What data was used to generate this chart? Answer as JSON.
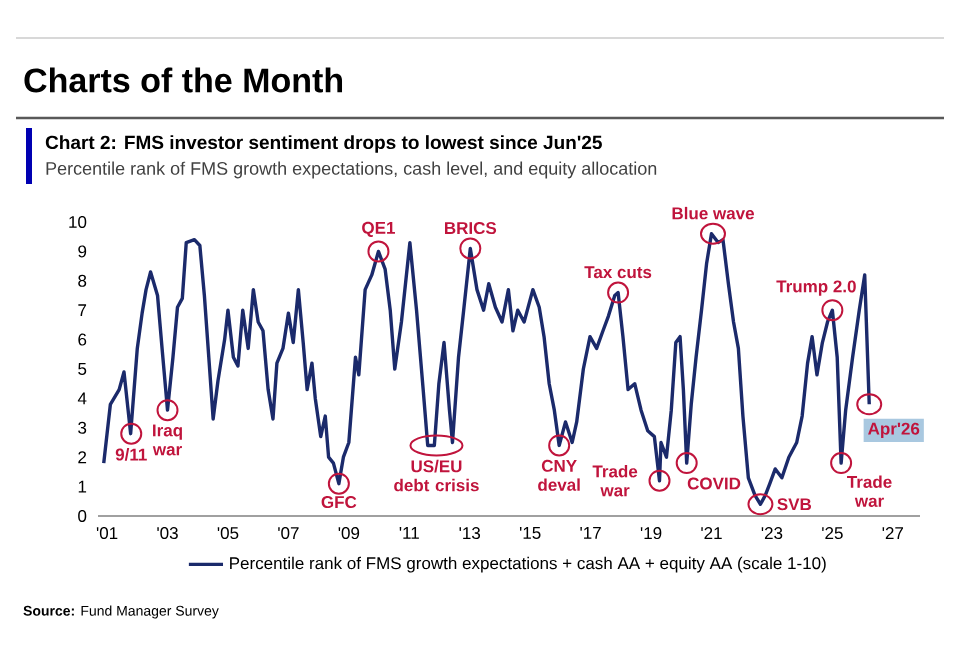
{
  "chart_data": {
    "type": "line",
    "title": "Chart 2: FMS investor sentiment drops to lowest since Jun'25",
    "subtitle": "Percentile rank of FMS growth expectations, cash level, and equity allocation",
    "annotations": [
      "Charts of the Month",
      "**Source:** Fund Manager Survey",
      {
        "text": "9/11",
        "x": 2001.8,
        "y": 2.8
      },
      {
        "text": "Iraq war",
        "x": 2003.0,
        "y": 3.6
      },
      {
        "text": "GFC",
        "x": 2008.67,
        "y": 1.1
      },
      {
        "text": "QE1",
        "x": 2009.98,
        "y": 9.0
      },
      {
        "text": "US/EU debt crisis",
        "x": 2011.9,
        "y": 2.4
      },
      {
        "text": "BRICS",
        "x": 2013.02,
        "y": 9.1
      },
      {
        "text": "CNY deval",
        "x": 2015.96,
        "y": 2.4
      },
      {
        "text": "Tax cuts",
        "x": 2017.91,
        "y": 7.6
      },
      {
        "text": "Trade war",
        "x": 2019.28,
        "y": 1.2
      },
      {
        "text": "COVID",
        "x": 2020.18,
        "y": 1.8
      },
      {
        "text": "Blue wave",
        "x": 2021.05,
        "y": 9.6
      },
      {
        "text": "SVB",
        "x": 2022.62,
        "y": 0.4
      },
      {
        "text": "Trump 2.0",
        "x": 2025.0,
        "y": 7.0
      },
      {
        "text": "Trade war",
        "x": 2025.29,
        "y": 1.8
      },
      {
        "text": "Apr'26",
        "x": 2026.22,
        "y": 3.8
      }
    ],
    "series": [
      {
        "name": "Percentile rank of FMS growth expectations + cash AA + equity AA (scale 1-10)",
        "color": "#1b2a6b",
        "x": [
          2000.89,
          2001.11,
          2001.4,
          2001.56,
          2001.78,
          2002.0,
          2002.16,
          2002.29,
          2002.44,
          2002.67,
          2002.82,
          2003.0,
          2003.18,
          2003.33,
          2003.49,
          2003.62,
          2003.89,
          2004.07,
          2004.22,
          2004.38,
          2004.51,
          2004.67,
          2004.89,
          2005.0,
          2005.18,
          2005.33,
          2005.49,
          2005.67,
          2005.84,
          2006.0,
          2006.16,
          2006.33,
          2006.49,
          2006.62,
          2006.82,
          2007.0,
          2007.16,
          2007.33,
          2007.49,
          2007.62,
          2007.78,
          2007.89,
          2008.07,
          2008.22,
          2008.33,
          2008.49,
          2008.67,
          2008.82,
          2009.0,
          2009.22,
          2009.33,
          2009.54,
          2009.76,
          2009.98,
          2010.2,
          2010.37,
          2010.52,
          2010.74,
          2011.02,
          2011.24,
          2011.46,
          2011.61,
          2011.83,
          2011.98,
          2012.15,
          2012.33,
          2012.43,
          2012.63,
          2012.8,
          2013.02,
          2013.24,
          2013.46,
          2013.63,
          2013.85,
          2014.07,
          2014.28,
          2014.43,
          2014.59,
          2014.8,
          2015.09,
          2015.3,
          2015.46,
          2015.63,
          2015.8,
          2015.96,
          2016.17,
          2016.39,
          2016.54,
          2016.76,
          2016.98,
          2017.2,
          2017.41,
          2017.59,
          2017.8,
          2017.91,
          2018.07,
          2018.24,
          2018.46,
          2018.67,
          2018.89,
          2019.11,
          2019.28,
          2019.33,
          2019.51,
          2019.67,
          2019.82,
          2019.96,
          2020.07,
          2020.18,
          2020.33,
          2020.49,
          2020.67,
          2020.84,
          2021.0,
          2021.22,
          2021.38,
          2021.56,
          2021.73,
          2021.89,
          2022.04,
          2022.22,
          2022.44,
          2022.62,
          2022.78,
          2022.93,
          2023.11,
          2023.33,
          2023.56,
          2023.82,
          2024.0,
          2024.18,
          2024.33,
          2024.49,
          2024.67,
          2024.84,
          2025.0,
          2025.16,
          2025.29,
          2025.44,
          2025.67,
          2025.89,
          2026.07,
          2026.22
        ],
        "values": [
          1.8,
          3.8,
          4.3,
          4.9,
          2.8,
          5.7,
          6.9,
          7.7,
          8.3,
          7.5,
          5.7,
          3.6,
          5.4,
          7.1,
          7.4,
          9.3,
          9.4,
          9.2,
          7.5,
          5.2,
          3.3,
          4.6,
          6.0,
          7.0,
          5.4,
          5.1,
          7.0,
          5.7,
          7.7,
          6.6,
          6.3,
          4.3,
          3.3,
          5.2,
          5.7,
          6.9,
          5.9,
          7.7,
          5.9,
          4.3,
          5.2,
          4.0,
          2.7,
          3.4,
          2.0,
          1.8,
          1.1,
          2.0,
          2.5,
          5.4,
          4.8,
          7.7,
          8.2,
          9.0,
          8.4,
          7.0,
          5.0,
          6.6,
          9.3,
          7.0,
          4.3,
          2.4,
          2.4,
          4.5,
          5.9,
          3.6,
          2.5,
          5.4,
          7.0,
          9.1,
          7.7,
          7.0,
          7.9,
          7.1,
          6.6,
          7.7,
          6.3,
          7.0,
          6.6,
          7.7,
          7.1,
          6.1,
          4.5,
          3.6,
          2.4,
          3.2,
          2.5,
          3.2,
          5.0,
          6.1,
          5.7,
          6.3,
          6.8,
          7.5,
          7.6,
          6.1,
          4.3,
          4.5,
          3.6,
          2.9,
          2.7,
          1.2,
          2.5,
          2.0,
          3.6,
          5.9,
          6.1,
          4.3,
          1.8,
          3.8,
          5.4,
          7.0,
          8.6,
          9.6,
          9.3,
          9.4,
          7.9,
          6.6,
          5.7,
          3.4,
          1.3,
          0.7,
          0.4,
          0.7,
          1.1,
          1.6,
          1.3,
          2.0,
          2.5,
          3.4,
          5.2,
          6.1,
          4.8,
          5.9,
          6.6,
          7.0,
          5.4,
          1.8,
          3.6,
          5.4,
          7.0,
          8.2,
          3.8
        ]
      }
    ],
    "xlim": [
      2000.7,
      2027.9
    ],
    "xticks": [
      {
        "value": 2001,
        "label": "'01"
      },
      {
        "value": 2003,
        "label": "'03"
      },
      {
        "value": 2005,
        "label": "'05"
      },
      {
        "value": 2007,
        "label": "'07"
      },
      {
        "value": 2009,
        "label": "'09"
      },
      {
        "value": 2011,
        "label": "'11"
      },
      {
        "value": 2013,
        "label": "'13"
      },
      {
        "value": 2015,
        "label": "'15"
      },
      {
        "value": 2017,
        "label": "'17"
      },
      {
        "value": 2019,
        "label": "'19"
      },
      {
        "value": 2021,
        "label": "'21"
      },
      {
        "value": 2023,
        "label": "'23"
      },
      {
        "value": 2025,
        "label": "'25"
      },
      {
        "value": 2027,
        "label": "'27"
      }
    ],
    "ylim": [
      0,
      10
    ],
    "yticks": [
      0,
      1,
      2,
      3,
      4,
      5,
      6,
      7,
      8,
      9,
      10
    ],
    "legend": "bottom"
  }
}
